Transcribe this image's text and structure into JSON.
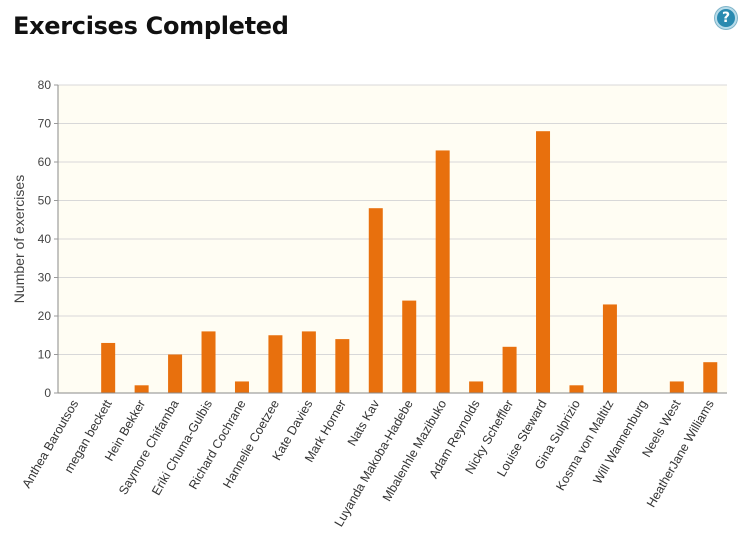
{
  "header": {
    "title": "Exercises Completed",
    "help_icon": "question-mark-icon",
    "help_label": "?"
  },
  "colors": {
    "bar": "#e8700d",
    "plot_background": "#fffdf3",
    "grid": "#d8d8d8",
    "help_button": "#2a8ab0"
  },
  "chart_data": {
    "type": "bar",
    "title": "",
    "xlabel": "",
    "ylabel": "Number of exercises",
    "ylim": [
      0,
      80
    ],
    "yticks": [
      0,
      10,
      20,
      30,
      40,
      50,
      60,
      70,
      80
    ],
    "grid": true,
    "legend": "none",
    "categories": [
      "Anthea Baroutsos",
      "megan beckett",
      "Hein Bekker",
      "Saymore Chifamba",
      "Eriki Chuma-Gulbis",
      "Richard Cochrane",
      "Hannelie Coetzee",
      "Kate Davies",
      "Mark Horner",
      "Nats Kav",
      "Luyanda Makoba-Hadebe",
      "Mbalenhle Mazibuko",
      "Adam Reynolds",
      "Nicky Scheffler",
      "Louise Steward",
      "Gina Sulprizio",
      "Kosma von Maltitz",
      "Will Wannenburg",
      "Neels West",
      "HeatherJane Williams"
    ],
    "values": [
      0,
      13,
      2,
      10,
      16,
      3,
      15,
      16,
      14,
      48,
      24,
      63,
      3,
      12,
      68,
      2,
      23,
      0,
      3,
      8
    ]
  }
}
